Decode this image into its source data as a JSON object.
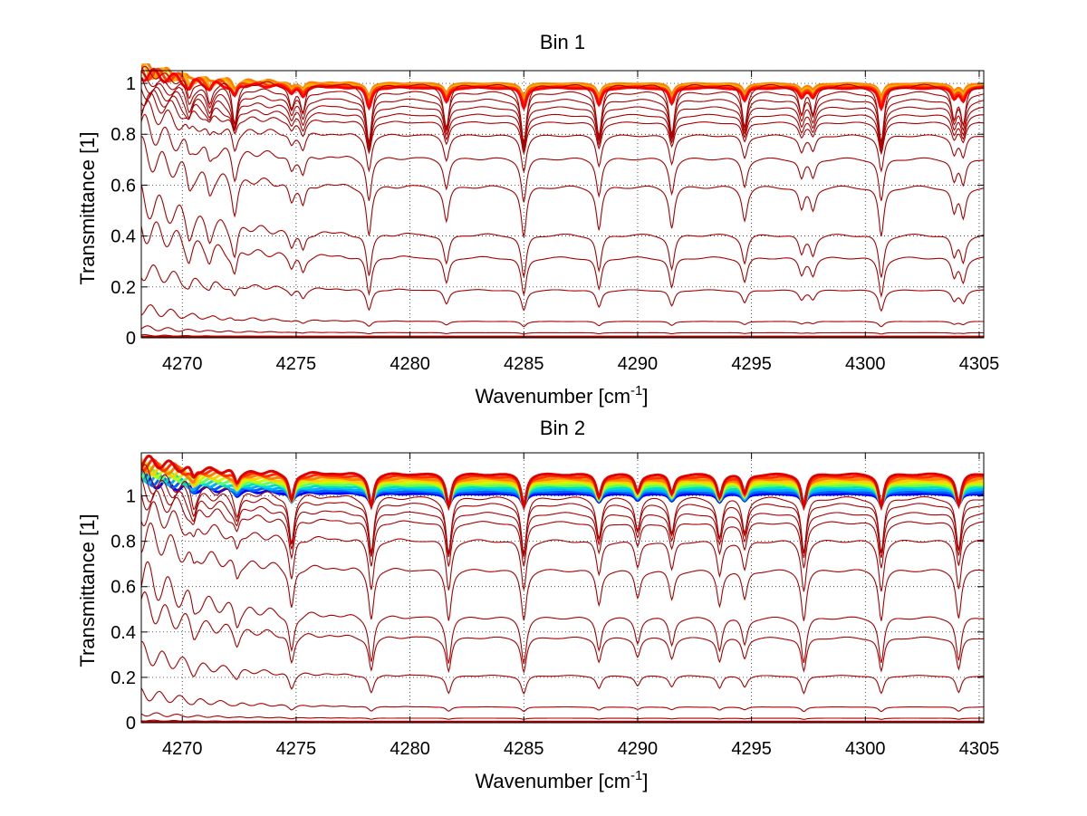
{
  "figure": {
    "background": "#ffffff"
  },
  "chart_data": [
    {
      "type": "line",
      "title": "Bin 1",
      "xlabel": "Wavenumber [cm",
      "xlabel_unit_exp": "-1",
      "xlabel_close": "]",
      "ylabel": "Transmittance [1]",
      "xlim": [
        4268.2,
        4305.2
      ],
      "ylim": [
        0,
        1.05
      ],
      "xticks": [
        4270,
        4275,
        4280,
        4285,
        4290,
        4295,
        4300,
        4305
      ],
      "xtick_labels": [
        "4270",
        "4275",
        "4280",
        "4285",
        "4290",
        "4295",
        "4300",
        "4305"
      ],
      "yticks": [
        0,
        0.2,
        0.4,
        0.6,
        0.8,
        1
      ],
      "ytick_labels": [
        "0",
        "0.2",
        "0.4",
        "0.6",
        "0.8",
        "1"
      ],
      "grid": "dotted",
      "legend": "none",
      "absorption_lines": [
        {
          "x": 4270.3,
          "strength": 0.35
        },
        {
          "x": 4271.2,
          "strength": 0.35
        },
        {
          "x": 4272.3,
          "strength": 0.65
        },
        {
          "x": 4274.8,
          "strength": 0.35
        },
        {
          "x": 4275.3,
          "strength": 0.45
        },
        {
          "x": 4278.2,
          "strength": 1.0
        },
        {
          "x": 4281.6,
          "strength": 0.7
        },
        {
          "x": 4285.0,
          "strength": 1.0
        },
        {
          "x": 4288.3,
          "strength": 0.85
        },
        {
          "x": 4291.5,
          "strength": 0.8
        },
        {
          "x": 4294.7,
          "strength": 0.65
        },
        {
          "x": 4297.2,
          "strength": 0.45
        },
        {
          "x": 4297.7,
          "strength": 0.45
        },
        {
          "x": 4300.7,
          "strength": 1.0
        },
        {
          "x": 4303.9,
          "strength": 0.5
        },
        {
          "x": 4304.3,
          "strength": 0.6
        }
      ],
      "series_groups": [
        {
          "name": "",
          "color": "#aa0000",
          "baselines": [
            1.0,
            0.97,
            0.94,
            0.91,
            0.88,
            0.85,
            0.8,
            0.71,
            0.6,
            0.41,
            0.32,
            0.19,
            0.065,
            0.02,
            0.005
          ],
          "dip_depths": [
            0.25,
            0.2,
            0.18,
            0.16,
            0.14,
            0.12,
            0.14,
            0.17,
            0.2,
            0.17,
            0.15,
            0.08,
            0.02,
            0.005,
            0.0
          ],
          "left_rise": [
            0.05,
            0.05,
            0.06,
            0.07,
            0.08,
            0.09,
            0.1,
            0.12,
            0.13,
            0.14,
            0.12,
            0.08,
            0.05,
            0.02,
            0.005
          ]
        }
      ],
      "overlay_band": {
        "colors": [
          "#ff7f00",
          "#ffb000",
          "#ff4000",
          "#ff0000"
        ],
        "top_values": [
          1.0,
          0.995,
          0.99,
          0.985
        ]
      }
    },
    {
      "type": "line",
      "title": "Bin 2",
      "xlabel": "Wavenumber [cm",
      "xlabel_unit_exp": "-1",
      "xlabel_close": "]",
      "ylabel": "Transmittance [1]",
      "xlim": [
        4268.2,
        4305.2
      ],
      "ylim": [
        0,
        1.19
      ],
      "xticks": [
        4270,
        4275,
        4280,
        4285,
        4290,
        4295,
        4300,
        4305
      ],
      "xtick_labels": [
        "4270",
        "4275",
        "4280",
        "4285",
        "4290",
        "4295",
        "4300",
        "4305"
      ],
      "yticks": [
        0,
        0.2,
        0.4,
        0.6,
        0.8,
        1
      ],
      "ytick_labels": [
        "0",
        "0.2",
        "0.4",
        "0.6",
        "0.8",
        "1"
      ],
      "grid": "dotted",
      "legend": "none",
      "absorption_lines": [
        {
          "x": 4270.5,
          "strength": 0.35
        },
        {
          "x": 4272.4,
          "strength": 0.4
        },
        {
          "x": 4274.8,
          "strength": 0.85
        },
        {
          "x": 4278.3,
          "strength": 1.0
        },
        {
          "x": 4281.7,
          "strength": 1.0
        },
        {
          "x": 4285.0,
          "strength": 1.0
        },
        {
          "x": 4288.3,
          "strength": 0.7
        },
        {
          "x": 4290.0,
          "strength": 0.55
        },
        {
          "x": 4291.5,
          "strength": 0.6
        },
        {
          "x": 4293.6,
          "strength": 0.7
        },
        {
          "x": 4294.7,
          "strength": 0.6
        },
        {
          "x": 4297.3,
          "strength": 1.0
        },
        {
          "x": 4300.7,
          "strength": 1.0
        },
        {
          "x": 4304.1,
          "strength": 0.95
        }
      ],
      "series_groups": [
        {
          "name": "",
          "color": "#aa0000",
          "baselines": [
            1.0,
            0.97,
            0.93,
            0.89,
            0.81,
            0.68,
            0.47,
            0.38,
            0.21,
            0.07,
            0.02,
            0.005
          ],
          "dip_depths": [
            0.25,
            0.22,
            0.2,
            0.2,
            0.22,
            0.22,
            0.2,
            0.15,
            0.08,
            0.02,
            0.005,
            0.0
          ],
          "left_rise": [
            0.1,
            0.1,
            0.11,
            0.12,
            0.14,
            0.16,
            0.18,
            0.14,
            0.1,
            0.06,
            0.02,
            0.005
          ]
        }
      ],
      "overlay_band": {
        "colors": [
          "#0000ff",
          "#0060ff",
          "#00b0ff",
          "#00e0c0",
          "#60ff60",
          "#c0ff00",
          "#ffd000",
          "#ff8000",
          "#ff3000",
          "#e00000"
        ],
        "top_values": [
          1.01,
          1.02,
          1.03,
          1.04,
          1.05,
          1.06,
          1.07,
          1.08,
          1.09,
          1.1
        ]
      }
    }
  ]
}
